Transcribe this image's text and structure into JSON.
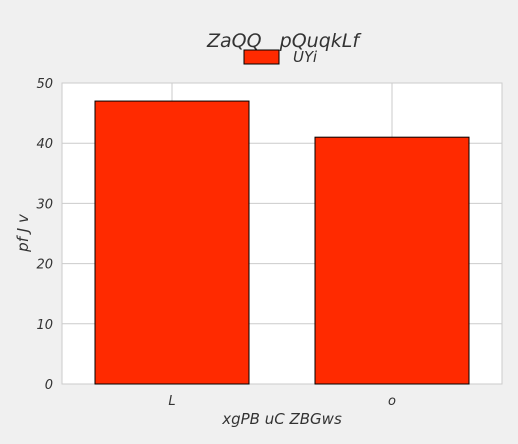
{
  "chart_data": {
    "type": "bar",
    "title": "ZaQQ   pQuqkLf",
    "xlabel": "xgPB uC ZBGws",
    "ylabel": "pf J v",
    "categories": [
      "L",
      "o"
    ],
    "series": [
      {
        "name": "UYi",
        "values": [
          47,
          41
        ],
        "color": "#ff2a00"
      }
    ],
    "ylim": [
      0,
      50
    ],
    "yticks": [
      0,
      10,
      20,
      30,
      40,
      50
    ],
    "grid": true,
    "legend_position": "top-center",
    "colors": {
      "background": "#f0f0f0",
      "plot_background": "#ffffff",
      "grid": "#cbcbcb",
      "bar_edge": "#000000"
    }
  }
}
